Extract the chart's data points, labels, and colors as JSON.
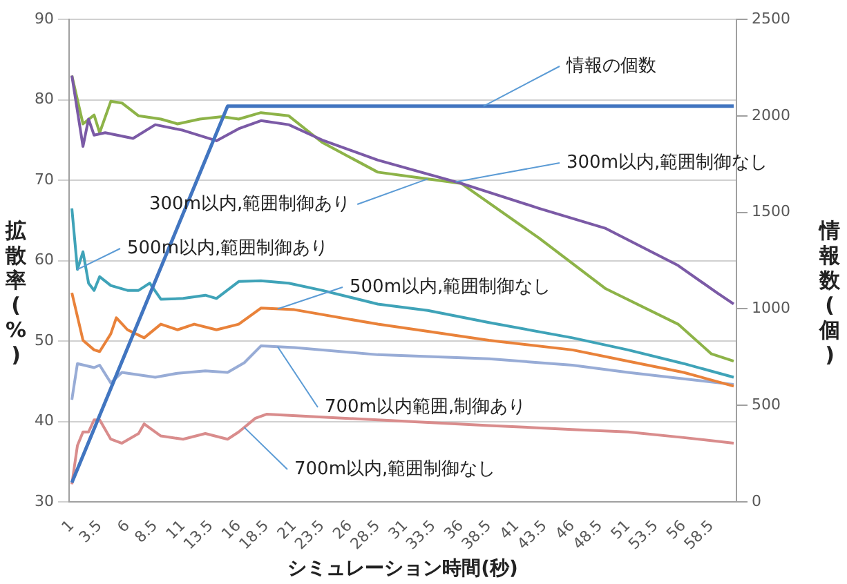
{
  "chart_data": {
    "type": "line",
    "xlabel": "シミュレーション時間(秒)",
    "ylabel": "拡散率(%)",
    "y2label": "情報数(個)",
    "xlim": [
      0.75,
      60.75
    ],
    "xticks": [
      1,
      3.5,
      6,
      8.5,
      11,
      13.5,
      16,
      18.5,
      21,
      23.5,
      26,
      28.5,
      31,
      33.5,
      36,
      38.5,
      41,
      43.5,
      46,
      48.5,
      51,
      53.5,
      56,
      58.5
    ],
    "ylim": [
      30,
      90
    ],
    "yticks": [
      30,
      40,
      50,
      60,
      70,
      80,
      90
    ],
    "y2lim": [
      0,
      2500
    ],
    "y2ticks": [
      0,
      500,
      1000,
      1500,
      2000,
      2500
    ],
    "grid": "y",
    "marker": "none",
    "line_style": "solid",
    "series": [
      {
        "name": "情報の個数",
        "color": "#4175c0",
        "axis": "y2",
        "x": [
          1,
          15,
          60.5
        ],
        "values": [
          100,
          2050,
          2050
        ]
      },
      {
        "name": "300m以内,範囲制御なし",
        "color": "#7b5aa6",
        "x": [
          1,
          2,
          2.5,
          3,
          4,
          6.5,
          8.5,
          11,
          14,
          16,
          18,
          20.5,
          23.5,
          28.5,
          36,
          43,
          49,
          55.5,
          59,
          60.5
        ],
        "values": [
          83,
          74.2,
          77.6,
          75.6,
          75.9,
          75.2,
          76.9,
          76.2,
          74.9,
          76.4,
          77.4,
          76.9,
          75,
          72.5,
          69.6,
          66.5,
          64,
          59.4,
          56,
          54.6
        ]
      },
      {
        "name": "300m以内,範囲制御あり",
        "color": "#8db348",
        "x": [
          1,
          2,
          3,
          3.5,
          4.5,
          5.5,
          7,
          9,
          10.5,
          12.5,
          14.5,
          16,
          18,
          20.5,
          23.5,
          28.5,
          36,
          43,
          49,
          55.5,
          58.5,
          60.5
        ],
        "values": [
          83,
          77,
          78.1,
          75.9,
          79.8,
          79.6,
          78,
          77.6,
          77,
          77.6,
          77.9,
          77.6,
          78.4,
          78,
          74.7,
          71,
          69.6,
          62.8,
          56.5,
          52.1,
          48.4,
          47.5
        ]
      },
      {
        "name": "500m以内,範囲制御あり",
        "color": "#3fa3b8",
        "x": [
          1,
          1.5,
          2,
          2.5,
          3,
          3.5,
          4.5,
          6,
          7,
          8,
          9,
          11,
          13,
          14,
          16,
          18,
          20.5,
          23.5,
          28.5,
          33,
          38.5,
          46,
          51,
          56,
          60.5
        ],
        "values": [
          66.5,
          58.9,
          61.1,
          57.2,
          56.3,
          58,
          56.9,
          56.3,
          56.3,
          57.2,
          55.2,
          55.3,
          55.7,
          55.3,
          57.4,
          57.5,
          57.2,
          56.3,
          54.6,
          53.8,
          52.3,
          50.4,
          48.9,
          47.2,
          45.5
        ]
      },
      {
        "name": "500m以内,範囲制御なし",
        "color": "#e9823a",
        "x": [
          1,
          2,
          3,
          3.5,
          4.5,
          5,
          6,
          7.5,
          9,
          10.5,
          12,
          14,
          16,
          18,
          21,
          28.5,
          33,
          38.5,
          46,
          51,
          56,
          60.5
        ],
        "values": [
          56,
          50.1,
          48.9,
          48.7,
          50.9,
          52.9,
          51.4,
          50.4,
          52.1,
          51.4,
          52.1,
          51.4,
          52.1,
          54.1,
          53.9,
          52.1,
          51.2,
          50.1,
          48.9,
          47.5,
          46.1,
          44.4
        ]
      },
      {
        "name": "700m以内範囲,制御あり",
        "color": "#98acd6",
        "x": [
          1,
          1.5,
          3,
          3.5,
          4.5,
          5.5,
          7,
          8.5,
          10.5,
          13,
          15,
          16.5,
          18,
          21,
          28.5,
          38.5,
          46,
          51,
          56,
          60.5
        ],
        "values": [
          42.7,
          47.2,
          46.7,
          47,
          44.8,
          46.1,
          45.8,
          45.5,
          46,
          46.3,
          46.1,
          47.3,
          49.4,
          49.2,
          48.3,
          47.8,
          47,
          46.1,
          45.3,
          44.6
        ]
      },
      {
        "name": "700m以内,範囲制御なし",
        "color": "#d98c8c",
        "x": [
          1,
          1.5,
          2,
          2.5,
          3,
          3.5,
          4.5,
          5.5,
          7,
          7.5,
          9,
          11,
          13,
          15,
          16,
          17.5,
          18.5,
          28.5,
          38.5,
          46,
          51,
          56,
          60.5
        ],
        "values": [
          32.2,
          37,
          38.7,
          38.7,
          40.2,
          40.2,
          37.8,
          37.3,
          38.5,
          39.7,
          38.2,
          37.8,
          38.5,
          37.8,
          38.7,
          40.4,
          40.9,
          40.2,
          39.5,
          39,
          38.7,
          38,
          37.3
        ]
      }
    ]
  }
}
